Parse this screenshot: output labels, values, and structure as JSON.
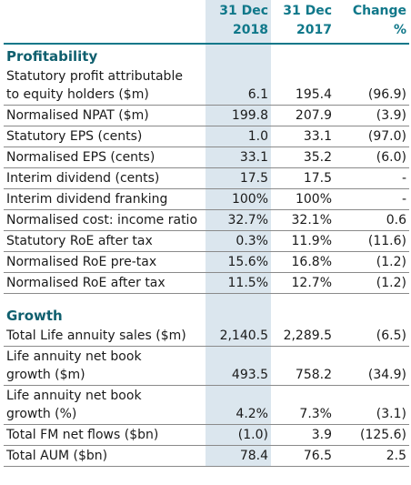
{
  "header": {
    "columns": [
      [
        "31 Dec",
        "2018"
      ],
      [
        "31 Dec",
        "2017"
      ],
      [
        "Change",
        "%"
      ]
    ]
  },
  "sections": [
    {
      "title": "Profitability",
      "rows": [
        {
          "label": [
            "Statutory profit attributable",
            "to equity holders ($m)"
          ],
          "values": [
            "6.1",
            "195.4",
            "(96.9)"
          ]
        },
        {
          "label": [
            "Normalised NPAT ($m)"
          ],
          "values": [
            "199.8",
            "207.9",
            "(3.9)"
          ]
        },
        {
          "label": [
            "Statutory EPS (cents)"
          ],
          "values": [
            "1.0",
            "33.1",
            "(97.0)"
          ]
        },
        {
          "label": [
            "Normalised EPS (cents)"
          ],
          "values": [
            "33.1",
            "35.2",
            "(6.0)"
          ]
        },
        {
          "label": [
            "Interim dividend (cents)"
          ],
          "values": [
            "17.5",
            "17.5",
            "-"
          ]
        },
        {
          "label": [
            "Interim dividend franking"
          ],
          "values": [
            "100%",
            "100%",
            "-"
          ]
        },
        {
          "label": [
            "Normalised cost: income ratio"
          ],
          "values": [
            "32.7%",
            "32.1%",
            "0.6"
          ]
        },
        {
          "label": [
            "Statutory RoE after tax"
          ],
          "values": [
            "0.3%",
            "11.9%",
            "(11.6)"
          ]
        },
        {
          "label": [
            "Normalised RoE pre-tax"
          ],
          "values": [
            "15.6%",
            "16.8%",
            "(1.2)"
          ]
        },
        {
          "label": [
            "Normalised RoE after tax"
          ],
          "values": [
            "11.5%",
            "12.7%",
            "(1.2)"
          ]
        }
      ]
    },
    {
      "title": "Growth",
      "rows": [
        {
          "label": [
            "Total Life annuity sales ($m)"
          ],
          "values": [
            "2,140.5",
            "2,289.5",
            "(6.5)"
          ]
        },
        {
          "label": [
            "Life annuity net book",
            "growth ($m)"
          ],
          "values": [
            "493.5",
            "758.2",
            "(34.9)"
          ]
        },
        {
          "label": [
            "Life annuity net book",
            "growth (%)"
          ],
          "values": [
            "4.2%",
            "7.3%",
            "(3.1)"
          ]
        },
        {
          "label": [
            "Total FM net flows ($bn)"
          ],
          "values": [
            "(1.0)",
            "3.9",
            "(125.6)"
          ]
        },
        {
          "label": [
            "Total AUM ($bn)"
          ],
          "values": [
            "78.4",
            "76.5",
            "2.5"
          ]
        }
      ]
    }
  ]
}
